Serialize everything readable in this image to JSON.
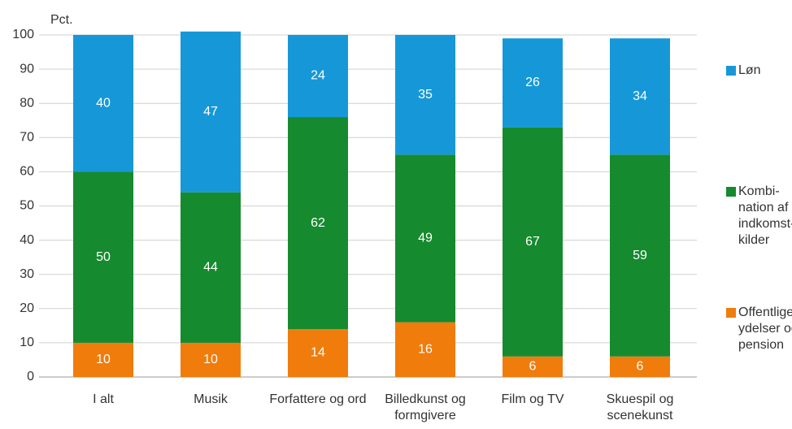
{
  "chart_data": {
    "type": "stacked_bar",
    "y_unit_label": "Pct.",
    "categories": [
      "I alt",
      "Musik",
      "Forfattere og ord",
      "Billedkunst og\nformgivere",
      "Film og TV",
      "Skuespil og\nscenekunst"
    ],
    "series": [
      {
        "name": "Offentlige\nydelser og\npension",
        "color": "#f07c0c",
        "values": [
          10,
          10,
          14,
          16,
          6,
          6
        ]
      },
      {
        "name": "Kombi-\nnation af\nindkomst-\nkilder",
        "color": "#168a2e",
        "values": [
          50,
          44,
          62,
          49,
          67,
          59
        ]
      },
      {
        "name": "Løn",
        "color": "#1698d8",
        "values": [
          40,
          47,
          24,
          35,
          26,
          34
        ]
      }
    ],
    "ylim": [
      0,
      100
    ],
    "yticks": [
      0,
      10,
      20,
      30,
      40,
      50,
      60,
      70,
      80,
      90,
      100
    ],
    "grid": true
  }
}
